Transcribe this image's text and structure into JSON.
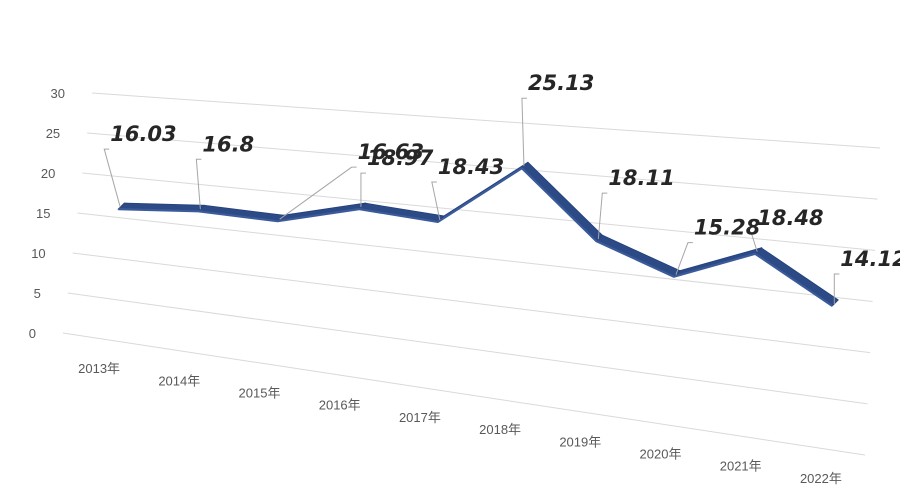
{
  "chart_data": {
    "type": "line",
    "title": "",
    "xlabel": "",
    "ylabel": "",
    "categories": [
      "2013年",
      "2014年",
      "2015年",
      "2016年",
      "2017年",
      "2018年",
      "2019年",
      "2020年",
      "2021年",
      "2022年"
    ],
    "series": [
      {
        "values": [
          16.03,
          16.8,
          16.63,
          18.97,
          18.43,
          25.13,
          18.11,
          15.28,
          18.48,
          14.12
        ],
        "color": "#3a5a9a"
      }
    ],
    "data_labels": [
      "16.03",
      "16.8",
      "16.63",
      "18.97",
      "18.43",
      "25.13",
      "18.11",
      "15.28",
      "18.48",
      "14.12"
    ],
    "ylim": [
      0,
      30
    ],
    "yticks": [
      "0",
      "5",
      "10",
      "15",
      "20",
      "25",
      "30"
    ],
    "grid": true,
    "legend": "none",
    "style": "3d-line"
  }
}
